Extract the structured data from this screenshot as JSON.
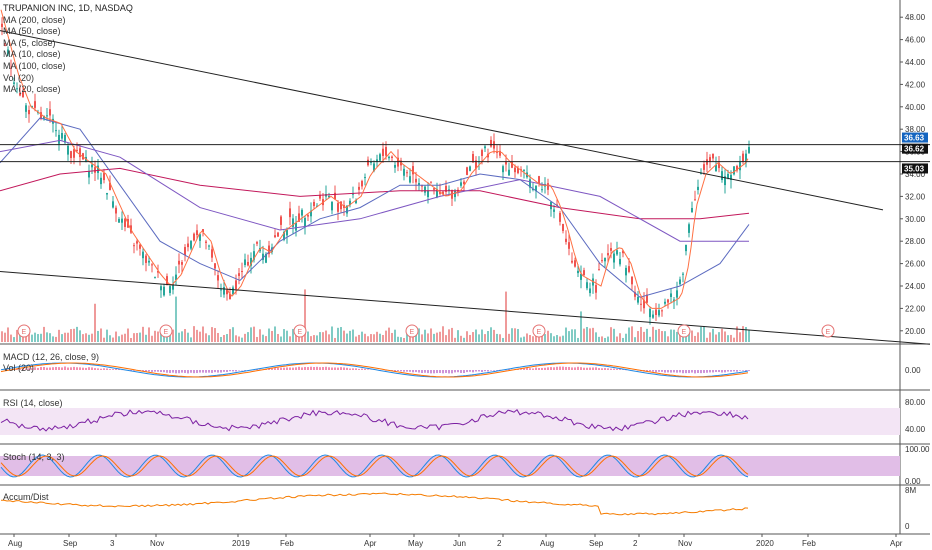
{
  "header": {
    "title": "TRUPANION INC, 1D, NASDAQ",
    "indicators": [
      "MA (200, close)",
      "MA (50, close)",
      "MA (5, close)",
      "MA (10, close)",
      "MA (100, close)",
      "Vol (20)",
      "MA (20, close)"
    ]
  },
  "panes": {
    "macd": "MACD (12, 26, close, 9)",
    "vol": "Vol (20)",
    "rsi": "RSI (14, close)",
    "stoch": "Stoch (14, 3, 3)",
    "ad": "Accum/Dist"
  },
  "colors": {
    "up": "#26a69a",
    "down": "#ef5350",
    "ma200": "#c2185b",
    "ma50": "#5c6bc0",
    "ma5": "#ff7043",
    "ma10": "#78909c",
    "ma100": "#7e57c2",
    "rsi": "#7b1fa2",
    "stoch_k": "#1e88e5",
    "stoch_d": "#ff6f00",
    "ad": "#f57c00",
    "band": "#e1bee7"
  },
  "chart_data": {
    "type": "candlestick",
    "x_axis_labels": [
      "Aug",
      "Sep",
      "3",
      "Nov",
      "2019",
      "Feb",
      "Apr",
      "May",
      "Jun",
      "2",
      "Aug",
      "Sep",
      "2",
      "Nov",
      "2020",
      "Feb",
      "Apr"
    ],
    "y_ticks": [
      "48.00",
      "46.00",
      "44.00",
      "42.00",
      "40.00",
      "38.00",
      "36.00",
      "34.00",
      "32.00",
      "30.00",
      "28.00",
      "26.00",
      "24.00",
      "22.00",
      "20.00"
    ],
    "ylim": [
      19,
      49
    ],
    "price_labels": [
      "36.63",
      "36.62",
      "35.03"
    ],
    "earnings_markers": [
      "E",
      "E",
      "E",
      "E",
      "E",
      "E",
      "E"
    ],
    "close_path": [
      [
        0,
        47
      ],
      [
        12,
        43
      ],
      [
        25,
        40
      ],
      [
        40,
        39
      ],
      [
        55,
        38.5
      ],
      [
        70,
        36
      ],
      [
        85,
        35
      ],
      [
        100,
        34
      ],
      [
        110,
        32
      ],
      [
        125,
        29
      ],
      [
        140,
        27
      ],
      [
        155,
        25
      ],
      [
        165,
        24
      ],
      [
        175,
        25
      ],
      [
        185,
        27
      ],
      [
        195,
        29
      ],
      [
        205,
        28
      ],
      [
        215,
        25
      ],
      [
        225,
        23
      ],
      [
        235,
        24
      ],
      [
        245,
        26
      ],
      [
        255,
        27.5
      ],
      [
        265,
        27
      ],
      [
        280,
        29
      ],
      [
        295,
        30
      ],
      [
        310,
        31
      ],
      [
        325,
        32
      ],
      [
        340,
        31
      ],
      [
        355,
        32
      ],
      [
        365,
        34
      ],
      [
        375,
        35
      ],
      [
        385,
        36
      ],
      [
        395,
        35
      ],
      [
        410,
        34
      ],
      [
        425,
        33
      ],
      [
        440,
        32
      ],
      [
        455,
        32.5
      ],
      [
        465,
        34
      ],
      [
        475,
        35
      ],
      [
        485,
        36
      ],
      [
        495,
        36
      ],
      [
        505,
        35
      ],
      [
        520,
        34
      ],
      [
        535,
        33
      ],
      [
        545,
        33
      ],
      [
        555,
        31
      ],
      [
        562,
        29
      ],
      [
        568,
        27
      ],
      [
        575,
        25
      ],
      [
        585,
        24.5
      ],
      [
        595,
        24
      ],
      [
        605,
        27
      ],
      [
        615,
        27.5
      ],
      [
        625,
        26
      ],
      [
        635,
        23
      ],
      [
        645,
        22
      ],
      [
        655,
        22
      ],
      [
        665,
        22.5
      ],
      [
        675,
        23
      ],
      [
        683,
        26
      ],
      [
        690,
        31
      ],
      [
        700,
        34
      ],
      [
        712,
        35
      ],
      [
        725,
        34
      ],
      [
        740,
        35
      ],
      [
        749,
        36.63
      ]
    ],
    "ma_series": {
      "MA 200": [
        [
          0,
          32.5
        ],
        [
          60,
          34
        ],
        [
          120,
          34.5
        ],
        [
          200,
          33
        ],
        [
          300,
          32
        ],
        [
          400,
          32.5
        ],
        [
          480,
          32.5
        ],
        [
          560,
          31
        ],
        [
          640,
          30
        ],
        [
          700,
          30
        ],
        [
          749,
          30.5
        ]
      ],
      "MA 50": [
        [
          0,
          35
        ],
        [
          40,
          39
        ],
        [
          80,
          38
        ],
        [
          120,
          33
        ],
        [
          160,
          28
        ],
        [
          200,
          26
        ],
        [
          240,
          24.5
        ],
        [
          280,
          28
        ],
        [
          320,
          30
        ],
        [
          360,
          31
        ],
        [
          400,
          33
        ],
        [
          440,
          33
        ],
        [
          480,
          34
        ],
        [
          520,
          33.5
        ],
        [
          560,
          31
        ],
        [
          600,
          26
        ],
        [
          640,
          23
        ],
        [
          680,
          24
        ],
        [
          720,
          26
        ],
        [
          749,
          29.5
        ]
      ],
      "MA 100": [
        [
          0,
          36
        ],
        [
          60,
          37
        ],
        [
          120,
          35.5
        ],
        [
          200,
          31
        ],
        [
          280,
          29
        ],
        [
          360,
          30
        ],
        [
          440,
          32
        ],
        [
          520,
          33.5
        ],
        [
          600,
          32
        ],
        [
          680,
          28
        ],
        [
          749,
          28
        ]
      ]
    },
    "trendlines": [
      {
        "from": [
          0,
          46.8
        ],
        "to": [
          883,
          30.8
        ]
      },
      {
        "from": [
          0,
          25.3
        ],
        "to": [
          930,
          18.8
        ]
      },
      {
        "from": [
          0,
          35.1
        ],
        "to": [
          930,
          35.1
        ]
      },
      {
        "from": [
          0,
          36.62
        ],
        "to": [
          930,
          36.62
        ]
      }
    ],
    "macd_ticks": [
      "0.00"
    ],
    "rsi_ticks": [
      "80.00",
      "40.00"
    ],
    "stoch_ticks": [
      "100.00",
      "0.00"
    ],
    "ad_ticks": [
      "8M",
      "0"
    ]
  }
}
